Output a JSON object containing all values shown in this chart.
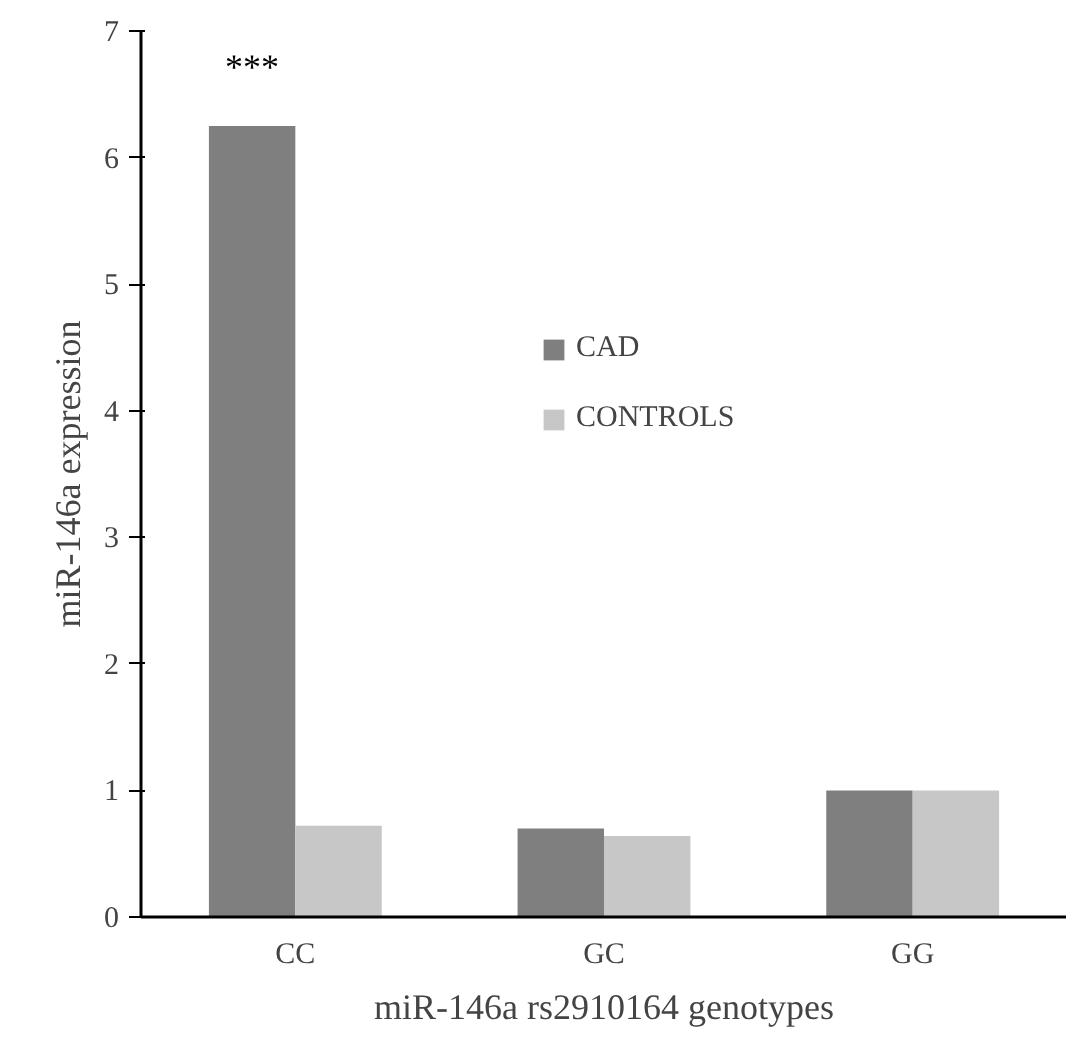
{
  "chart_data": {
    "type": "bar",
    "xlabel": "miR-146a rs2910164 genotypes",
    "ylabel": "miR-146a expression",
    "categories": [
      "CC",
      "GC",
      "GG"
    ],
    "series": [
      {
        "name": "CAD",
        "color": "#7f7f7f",
        "values": [
          6.25,
          0.7,
          1.0
        ]
      },
      {
        "name": "CONTROLS",
        "color": "#c6c7c6",
        "values": [
          0.72,
          0.64,
          1.0
        ]
      }
    ],
    "ylim": [
      0,
      7
    ],
    "yticks": [
      0,
      1,
      2,
      3,
      4,
      5,
      6,
      7
    ],
    "grid": false,
    "legend": "top",
    "annotations": [
      "***"
    ]
  }
}
